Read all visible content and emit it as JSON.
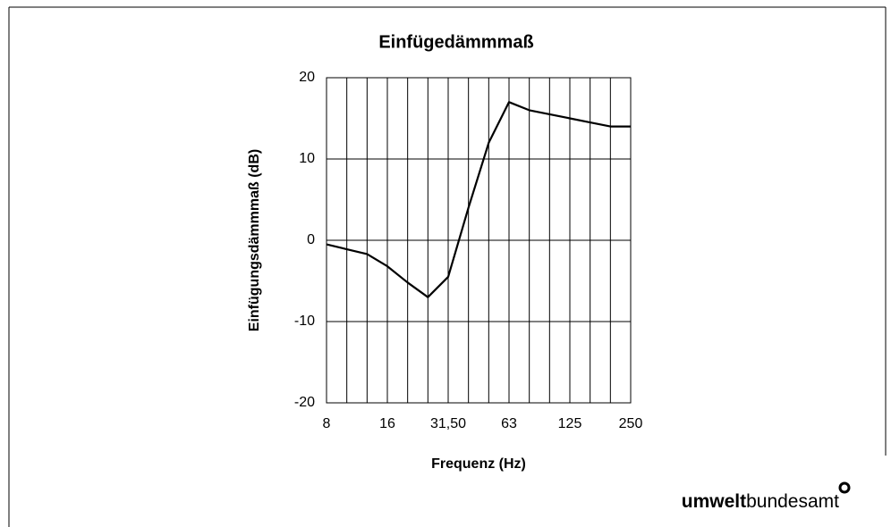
{
  "chart_data": {
    "type": "line",
    "title": "Einfügedämmmaß",
    "x_label": "Frequenz (Hz)",
    "y_label": "Einfügungsdämmmaß (dB)",
    "categories": [
      "8",
      null,
      null,
      "16",
      null,
      null,
      "31,50",
      null,
      null,
      "63",
      null,
      null,
      "125",
      null,
      null,
      "250"
    ],
    "series": [
      {
        "name": "Einfügedämmmaß",
        "color": "#000000",
        "values": [
          -0.5,
          -1.1,
          -1.7,
          -3.2,
          -5.2,
          -7,
          -4.5,
          4,
          12,
          17,
          16,
          15.5,
          15,
          14.5,
          14,
          14
        ]
      }
    ],
    "ylim": [
      -20,
      20
    ],
    "yticks": [
      -20,
      -10,
      0,
      10,
      20
    ],
    "grid": true
  },
  "logo": {
    "bold": "umwelt",
    "regular": "bundesamt"
  }
}
